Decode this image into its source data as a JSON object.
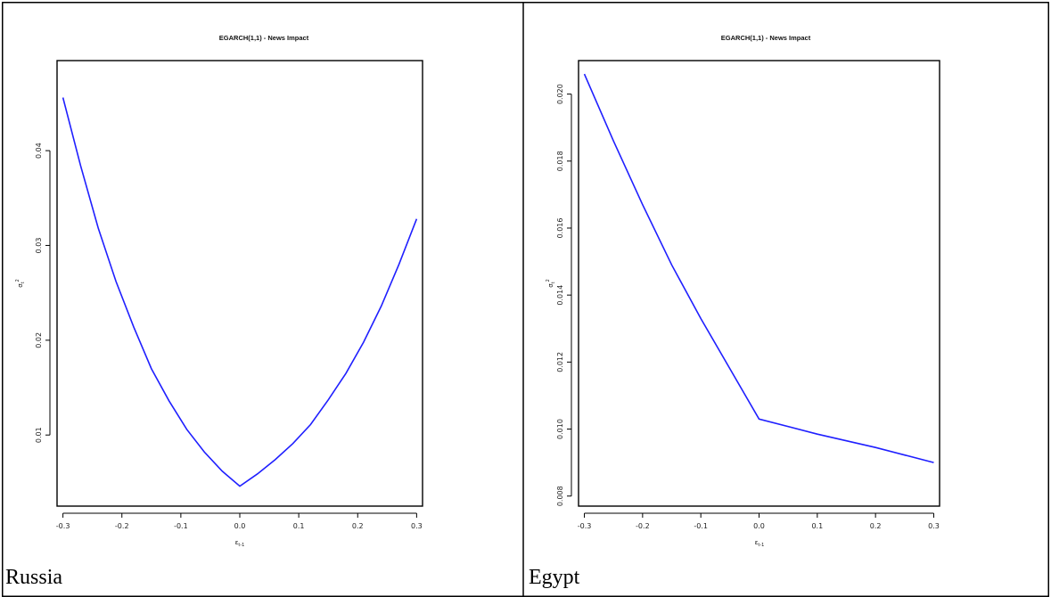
{
  "panels": [
    {
      "caption": "Russia"
    },
    {
      "caption": "Egypt"
    }
  ],
  "chart_data": [
    {
      "type": "line",
      "title": "EGARCH(1,1) - News Impact",
      "xlabel": "ε_{t-1}",
      "ylabel": "σ²_t",
      "x_ticks": [
        -0.3,
        -0.2,
        -0.1,
        0.0,
        0.1,
        0.2,
        0.3
      ],
      "x_tick_labels": [
        "-0.3",
        "-0.2",
        "-0.1",
        "0.0",
        "0.1",
        "0.2",
        "0.3"
      ],
      "y_ticks": [
        0.01,
        0.02,
        0.03,
        0.04
      ],
      "y_tick_labels": [
        "0.01",
        "0.02",
        "0.03",
        "0.04"
      ],
      "xlim": [
        -0.31,
        0.31
      ],
      "ylim": [
        0.0025,
        0.0495
      ],
      "series": [
        {
          "color": "#1f1fff",
          "x": [
            -0.3,
            -0.27,
            -0.24,
            -0.21,
            -0.18,
            -0.15,
            -0.12,
            -0.09,
            -0.06,
            -0.03,
            0.0,
            0.03,
            0.06,
            0.09,
            0.12,
            0.15,
            0.18,
            0.21,
            0.24,
            0.27,
            0.3
          ],
          "y": [
            0.0456,
            0.0384,
            0.0318,
            0.0262,
            0.0214,
            0.017,
            0.0136,
            0.0106,
            0.0082,
            0.0062,
            0.0046,
            0.0059,
            0.0074,
            0.0091,
            0.0111,
            0.0137,
            0.0165,
            0.0198,
            0.0236,
            0.028,
            0.0328
          ]
        }
      ]
    },
    {
      "type": "line",
      "title": "EGARCH(1,1) - News Impact",
      "xlabel": "ε_{t-1}",
      "ylabel": "σ²_t",
      "x_ticks": [
        -0.3,
        -0.2,
        -0.1,
        0.0,
        0.1,
        0.2,
        0.3
      ],
      "x_tick_labels": [
        "-0.3",
        "-0.2",
        "-0.1",
        "0.0",
        "0.1",
        "0.2",
        "0.3"
      ],
      "y_ticks": [
        0.008,
        0.01,
        0.012,
        0.014,
        0.016,
        0.018,
        0.02
      ],
      "y_tick_labels": [
        "0.008",
        "0.010",
        "0.012",
        "0.014",
        "0.016",
        "0.018",
        "0.020"
      ],
      "xlim": [
        -0.31,
        0.31
      ],
      "ylim": [
        0.0077,
        0.021
      ],
      "series": [
        {
          "color": "#1f1fff",
          "x": [
            -0.3,
            -0.25,
            -0.2,
            -0.15,
            -0.1,
            -0.05,
            0.0,
            0.1,
            0.2,
            0.3
          ],
          "y": [
            0.0206,
            0.0186,
            0.0167,
            0.0149,
            0.0133,
            0.0118,
            0.0103,
            0.00985,
            0.00945,
            0.009
          ]
        }
      ]
    }
  ]
}
